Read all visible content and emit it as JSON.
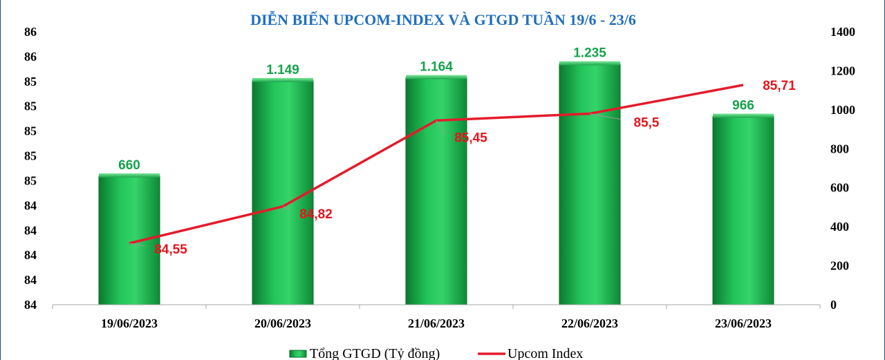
{
  "chart_data": {
    "type": "bar",
    "title": "DIỄN BIẾN UPCOM-INDEX VÀ GTGD TUẦN 19/6 - 23/6",
    "categories": [
      "19/06/2023",
      "20/06/2023",
      "21/06/2023",
      "22/06/2023",
      "23/06/2023"
    ],
    "series": [
      {
        "name": "Tổng GTGD (Tỷ đồng)",
        "type": "bar",
        "axis": "right",
        "values": [
          660,
          1149,
          1164,
          1235,
          966
        ],
        "labels": [
          "660",
          "1.149",
          "1.164",
          "1.235",
          "966"
        ],
        "color": "#1aa64b"
      },
      {
        "name": "Upcom Index",
        "type": "line",
        "axis": "left",
        "values": [
          84.55,
          84.82,
          85.45,
          85.5,
          85.71
        ],
        "labels": [
          "84,55",
          "84,82",
          "85,45",
          "85,5",
          "85,71"
        ],
        "color": "#e31b2b"
      }
    ],
    "y_left": {
      "range": [
        84.1,
        86.1
      ],
      "step": 0.2,
      "tick_labels": [
        "84",
        "84",
        "84",
        "84",
        "84",
        "85",
        "85",
        "85",
        "85",
        "85",
        "86",
        "86"
      ]
    },
    "y_right": {
      "range": [
        0,
        1400
      ],
      "ticks": [
        0,
        200,
        400,
        600,
        800,
        1000,
        1200,
        1400
      ],
      "tick_labels": [
        "0",
        "200",
        "400",
        "600",
        "800",
        "1000",
        "1200",
        "1400"
      ]
    },
    "grid": false,
    "legend": "bottom"
  }
}
